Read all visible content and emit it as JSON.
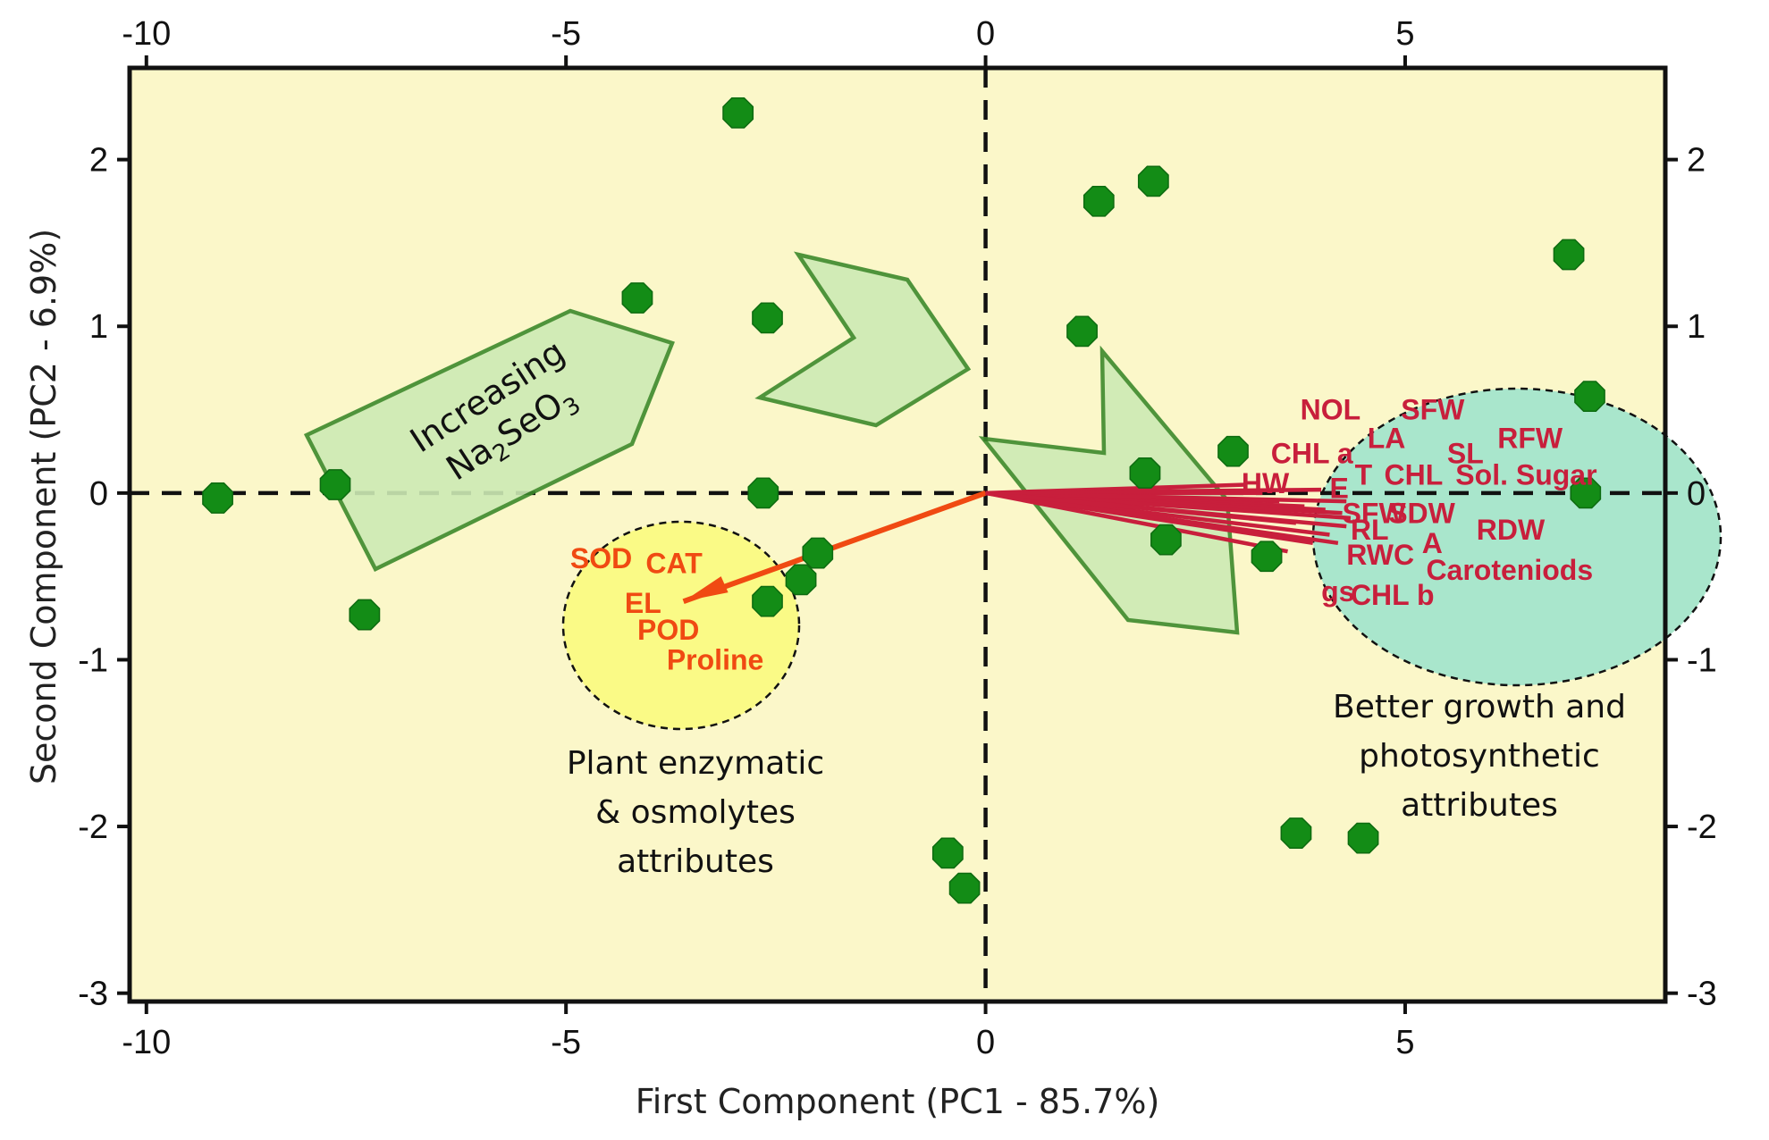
{
  "chart_data": {
    "type": "scatter",
    "subtype": "pca-biplot",
    "xlabel": "First Component (PC1 - 85.7%)",
    "ylabel": "Second Component (PC2 - 6.9%)",
    "xlim": [
      -10.2,
      8.1
    ],
    "ylim": [
      -3.05,
      2.55
    ],
    "xticks": [
      -10,
      -5,
      0,
      5
    ],
    "yticks": [
      -3,
      -2,
      -1,
      0,
      1,
      2
    ],
    "reference_lines": {
      "x": 0,
      "y": 0
    },
    "scores": [
      [
        -9.15,
        -0.03
      ],
      [
        -7.75,
        0.05
      ],
      [
        -7.4,
        -0.73
      ],
      [
        -4.15,
        1.17
      ],
      [
        -2.95,
        2.28
      ],
      [
        -2.6,
        1.05
      ],
      [
        -2.65,
        0.0
      ],
      [
        -2.0,
        -0.36
      ],
      [
        -2.2,
        -0.52
      ],
      [
        -2.6,
        -0.65
      ],
      [
        -0.45,
        -2.16
      ],
      [
        -0.25,
        -2.37
      ],
      [
        1.15,
        0.97
      ],
      [
        1.35,
        1.75
      ],
      [
        2.0,
        1.87
      ],
      [
        1.9,
        0.12
      ],
      [
        2.15,
        -0.28
      ],
      [
        2.95,
        0.25
      ],
      [
        3.35,
        -0.38
      ],
      [
        3.7,
        -2.04
      ],
      [
        4.5,
        -2.07
      ],
      [
        6.95,
        1.43
      ],
      [
        7.2,
        0.58
      ],
      [
        7.15,
        0.0
      ]
    ],
    "loadings_groups": [
      {
        "name": "enzymatic",
        "color": "#f04a12",
        "tip": [
          -3.6,
          -0.65
        ],
        "labels": [
          {
            "text": "SOD",
            "x": -4.95,
            "y": -0.45
          },
          {
            "text": "CAT",
            "x": -4.05,
            "y": -0.48
          },
          {
            "text": "EL",
            "x": -4.3,
            "y": -0.72
          },
          {
            "text": "POD",
            "x": -4.15,
            "y": -0.88
          },
          {
            "text": "Proline",
            "x": -3.8,
            "y": -1.06
          }
        ]
      },
      {
        "name": "growth",
        "color": "#c81f3c",
        "tips": [
          [
            3.1,
            0.05
          ],
          [
            3.3,
            0.0
          ],
          [
            3.5,
            -0.05
          ],
          [
            3.8,
            -0.08
          ],
          [
            4.05,
            -0.1
          ],
          [
            4.25,
            -0.12
          ],
          [
            4.35,
            -0.15
          ],
          [
            4.3,
            -0.2
          ],
          [
            4.1,
            -0.25
          ],
          [
            3.9,
            -0.3
          ],
          [
            4.3,
            -0.05
          ],
          [
            4.2,
            -0.3
          ],
          [
            3.7,
            -0.18
          ],
          [
            4.0,
            0.02
          ],
          [
            3.6,
            -0.35
          ]
        ],
        "labels": [
          {
            "text": "NOL",
            "x": 3.75,
            "y": 0.44
          },
          {
            "text": "SFW",
            "x": 4.95,
            "y": 0.44
          },
          {
            "text": "LA",
            "x": 4.55,
            "y": 0.27
          },
          {
            "text": "RFW",
            "x": 6.1,
            "y": 0.27
          },
          {
            "text": "CHL a",
            "x": 3.4,
            "y": 0.18
          },
          {
            "text": "SL",
            "x": 5.5,
            "y": 0.18
          },
          {
            "text": "T",
            "x": 4.4,
            "y": 0.05
          },
          {
            "text": "CHL",
            "x": 4.75,
            "y": 0.05
          },
          {
            "text": "Sol. Sugar",
            "x": 5.6,
            "y": 0.05
          },
          {
            "text": "HW",
            "x": 3.05,
            "y": 0.0
          },
          {
            "text": "E",
            "x": 4.1,
            "y": -0.03
          },
          {
            "text": "SFW",
            "x": 4.25,
            "y": -0.18
          },
          {
            "text": "SDW",
            "x": 4.8,
            "y": -0.18
          },
          {
            "text": "RL",
            "x": 4.35,
            "y": -0.28
          },
          {
            "text": "RDW",
            "x": 5.85,
            "y": -0.28
          },
          {
            "text": "A",
            "x": 5.2,
            "y": -0.36
          },
          {
            "text": "RWC",
            "x": 4.3,
            "y": -0.43
          },
          {
            "text": "Caroteniods",
            "x": 5.25,
            "y": -0.52
          },
          {
            "text": "gs",
            "x": 4.0,
            "y": -0.65
          },
          {
            "text": "CHL b",
            "x": 4.35,
            "y": -0.67
          }
        ]
      }
    ],
    "annotations": [
      {
        "lines": [
          "Plant enzymatic",
          "& osmolytes",
          "attributes"
        ]
      },
      {
        "lines": [
          "Better growth and",
          "photosynthetic",
          "attributes"
        ]
      },
      {
        "text": "Increasing",
        "formula": {
          "base": "Na",
          "sub1": "2",
          "mid": "SeO",
          "sub2": "3"
        }
      }
    ]
  },
  "colors": {
    "plot_bg": "#fbf7c9",
    "point": "#138c16",
    "enzymatic_ellipse": "#fafa86",
    "growth_ellipse": "#a9e6cc",
    "arrow_fill": "#cdeab4",
    "arrow_stroke": "#3d8a2c"
  }
}
